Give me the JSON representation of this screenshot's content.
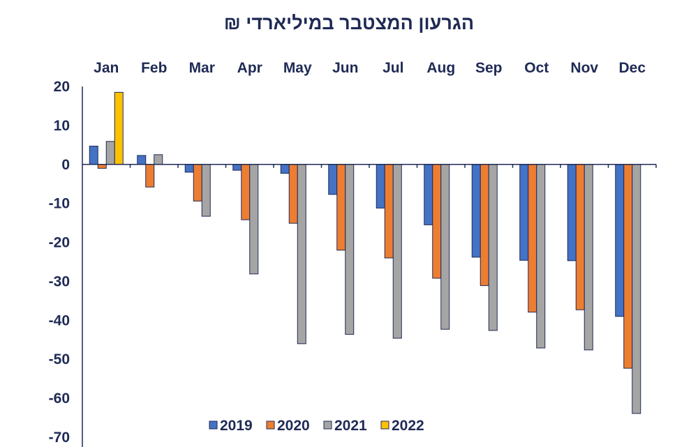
{
  "chart_data": {
    "type": "bar",
    "title": "הגרעון המצטבר במיליארדי ₪",
    "categories": [
      "Jan",
      "Feb",
      "Mar",
      "Apr",
      "May",
      "Jun",
      "Jul",
      "Aug",
      "Sep",
      "Oct",
      "Nov",
      "Dec"
    ],
    "series": [
      {
        "name": "2019",
        "color": "#4472c4",
        "values": [
          4.7,
          2.3,
          -2.0,
          -1.5,
          -2.3,
          -7.7,
          -11.2,
          -15.5,
          -23.8,
          -24.6,
          -24.7,
          -39.0
        ]
      },
      {
        "name": "2020",
        "color": "#ed7d31",
        "values": [
          -1.0,
          -5.8,
          -9.4,
          -14.2,
          -15.1,
          -22.0,
          -24.0,
          -29.2,
          -31.1,
          -37.9,
          -37.3,
          -52.3
        ]
      },
      {
        "name": "2021",
        "color": "#a5a5a5",
        "values": [
          5.9,
          2.5,
          -13.3,
          -28.1,
          -46.0,
          -43.6,
          -44.6,
          -42.3,
          -42.6,
          -47.1,
          -47.6,
          -63.9
        ]
      },
      {
        "name": "2022",
        "color": "#ffc000",
        "values": [
          18.5,
          null,
          null,
          null,
          null,
          null,
          null,
          null,
          null,
          null,
          null,
          null
        ]
      }
    ],
    "ylim": [
      -70,
      20
    ],
    "yticks": [
      "20",
      "10",
      "0",
      "-10",
      "-20",
      "-30",
      "-40",
      "-50",
      "-60",
      "-70"
    ],
    "xlabel": "",
    "ylabel": "",
    "legend_position": "bottom-center",
    "grid": false
  }
}
